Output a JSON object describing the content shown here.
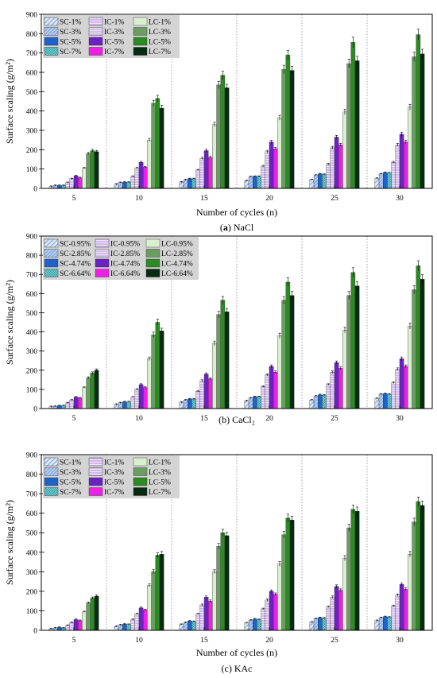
{
  "chart_data": [
    {
      "type": "bar",
      "caption": {
        "label": "a",
        "text": "NaCl"
      },
      "xlabel": "Number of cycles (n)",
      "ylabel": "Surface scaling (g/m²)",
      "ylim": [
        0,
        900
      ],
      "yticks": [
        "0",
        "100",
        "200",
        "300",
        "400",
        "500",
        "600",
        "700",
        "800",
        "900"
      ],
      "categories": [
        "5",
        "10",
        "15",
        "20",
        "25",
        "30"
      ],
      "legend_position": "top-left",
      "series": [
        {
          "name": "SC-1%",
          "values": [
            10,
            22,
            33,
            40,
            45,
            52
          ]
        },
        {
          "name": "SC-3%",
          "values": [
            15,
            30,
            45,
            60,
            68,
            75
          ]
        },
        {
          "name": "SC-5%",
          "values": [
            15,
            32,
            50,
            62,
            75,
            82
          ]
        },
        {
          "name": "SC-7%",
          "values": [
            15,
            32,
            50,
            62,
            72,
            80
          ]
        },
        {
          "name": "IC-1%",
          "values": [
            30,
            62,
            95,
            115,
            125,
            135
          ]
        },
        {
          "name": "IC-3%",
          "values": [
            50,
            105,
            155,
            190,
            210,
            225
          ]
        },
        {
          "name": "IC-5%",
          "values": [
            65,
            135,
            195,
            240,
            265,
            280
          ]
        },
        {
          "name": "IC-7%",
          "values": [
            55,
            110,
            160,
            205,
            225,
            240
          ]
        },
        {
          "name": "LC-1%",
          "values": [
            105,
            250,
            330,
            365,
            395,
            420
          ]
        },
        {
          "name": "LC-3%",
          "values": [
            180,
            440,
            535,
            615,
            645,
            680
          ]
        },
        {
          "name": "LC-5%",
          "values": [
            195,
            465,
            585,
            690,
            755,
            795
          ]
        },
        {
          "name": "LC-7%",
          "values": [
            190,
            415,
            520,
            610,
            660,
            695
          ]
        }
      ]
    },
    {
      "type": "bar",
      "caption": {
        "label": "b",
        "text": "CaCl₂"
      },
      "xlabel": "",
      "ylabel": "Surface scaling (g/m²)",
      "ylim": [
        0,
        900
      ],
      "yticks": [
        "0",
        "100",
        "200",
        "300",
        "400",
        "500",
        "600",
        "700",
        "800",
        "900"
      ],
      "categories": [
        "5",
        "10",
        "15",
        "20",
        "25",
        "30"
      ],
      "legend_position": "top-left",
      "series": [
        {
          "name": "SC-0.95%",
          "values": [
            10,
            22,
            33,
            40,
            45,
            52
          ]
        },
        {
          "name": "SC-2.85%",
          "values": [
            12,
            30,
            45,
            55,
            65,
            75
          ]
        },
        {
          "name": "SC-4.74%",
          "values": [
            15,
            35,
            50,
            62,
            72,
            78
          ]
        },
        {
          "name": "SC-6.64%",
          "values": [
            15,
            35,
            50,
            62,
            70,
            75
          ]
        },
        {
          "name": "IC-0.95%",
          "values": [
            30,
            60,
            90,
            115,
            125,
            135
          ]
        },
        {
          "name": "IC-2.85%",
          "values": [
            45,
            100,
            145,
            175,
            190,
            205
          ]
        },
        {
          "name": "IC-4.74%",
          "values": [
            60,
            125,
            180,
            220,
            240,
            260
          ]
        },
        {
          "name": "IC-6.64%",
          "values": [
            55,
            110,
            155,
            190,
            210,
            220
          ]
        },
        {
          "name": "LC-0.95%",
          "values": [
            110,
            260,
            340,
            380,
            410,
            430
          ]
        },
        {
          "name": "LC-2.85%",
          "values": [
            160,
            385,
            490,
            565,
            590,
            620
          ]
        },
        {
          "name": "LC-4.74%",
          "values": [
            185,
            450,
            565,
            660,
            710,
            745
          ]
        },
        {
          "name": "LC-6.64%",
          "values": [
            200,
            405,
            505,
            590,
            640,
            675
          ]
        }
      ]
    },
    {
      "type": "bar",
      "caption": {
        "label": "c",
        "text": "KAc"
      },
      "xlabel": "Number of cycles (n)",
      "ylabel": "Surface scaling (g/m²)",
      "ylim": [
        0,
        900
      ],
      "yticks": [
        "0",
        "100",
        "200",
        "300",
        "400",
        "500",
        "600",
        "700",
        "800",
        "900"
      ],
      "categories": [
        "5",
        "10",
        "15",
        "20",
        "25",
        "30"
      ],
      "legend_position": "top-left",
      "series": [
        {
          "name": "SC-1%",
          "values": [
            8,
            20,
            30,
            38,
            42,
            50
          ]
        },
        {
          "name": "SC-3%",
          "values": [
            12,
            28,
            40,
            52,
            60,
            65
          ]
        },
        {
          "name": "SC-5%",
          "values": [
            15,
            32,
            48,
            58,
            65,
            70
          ]
        },
        {
          "name": "SC-7%",
          "values": [
            12,
            30,
            45,
            55,
            62,
            68
          ]
        },
        {
          "name": "IC-1%",
          "values": [
            25,
            55,
            85,
            110,
            120,
            125
          ]
        },
        {
          "name": "IC-3%",
          "values": [
            40,
            85,
            130,
            155,
            170,
            180
          ]
        },
        {
          "name": "IC-5%",
          "values": [
            55,
            115,
            170,
            200,
            225,
            235
          ]
        },
        {
          "name": "IC-7%",
          "values": [
            50,
            105,
            150,
            185,
            205,
            210
          ]
        },
        {
          "name": "LC-1%",
          "values": [
            95,
            230,
            300,
            340,
            370,
            390
          ]
        },
        {
          "name": "LC-3%",
          "values": [
            140,
            300,
            430,
            490,
            525,
            555
          ]
        },
        {
          "name": "LC-5%",
          "values": [
            165,
            385,
            500,
            575,
            620,
            660
          ]
        },
        {
          "name": "LC-7%",
          "values": [
            175,
            390,
            485,
            565,
            610,
            640
          ]
        }
      ]
    }
  ],
  "style": {
    "colors": [
      "#b9cfec",
      "#7fa7e0",
      "#1f62c8",
      "#2a9da2",
      "#e8d4f5",
      "#c4a2e6",
      "#6a22c0",
      "#f01fe6",
      "#d9efcf",
      "#6b9d63",
      "#2c8b22",
      "#062b12"
    ],
    "patterns": [
      "hatch-a",
      "hatch-b",
      "solid",
      "checker",
      "hlines",
      "hlines",
      "solid",
      "solid",
      "solid",
      "solid",
      "solid",
      "solid"
    ],
    "separator_style": "dotted-vertical",
    "error_bars": true
  }
}
